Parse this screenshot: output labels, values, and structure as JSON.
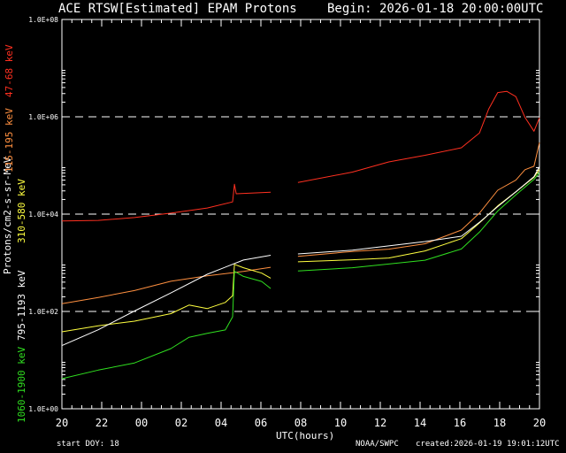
{
  "header": {
    "title": "ACE RTSW[Estimated] EPAM Protons",
    "begin": "Begin: 2026-01-18 20:00:00UTC"
  },
  "footer": {
    "start_doy_label": "start DOY:",
    "start_doy_value": "18",
    "source": "NOAA/SWPC",
    "created": "created:2026-01-19 19:01:12UTC"
  },
  "chart_data": {
    "type": "line",
    "scale": "log",
    "title": "ACE RTSW[Estimated] EPAM Protons",
    "xlabel": "UTC(hours)",
    "ylabel": "Protons/cm2-s-sr-MeV",
    "x_range_hours": [
      0,
      24
    ],
    "x_ticks": [
      "20",
      "22",
      "00",
      "02",
      "04",
      "06",
      "08",
      "10",
      "12",
      "14",
      "16",
      "18",
      "20"
    ],
    "y_ticks": [
      "1.0E+00",
      "1.0E+02",
      "1.0E+04",
      "1.0E+06",
      "1.0E+08"
    ],
    "y_log_range": [
      0,
      8
    ],
    "dashed_gridlines": [
      100,
      10000,
      1000000
    ],
    "legend_placement": "left-vertical",
    "series": [
      {
        "name": "47-68 keV",
        "color": "#ff3020",
        "points": [
          [
            0,
            7200
          ],
          [
            2,
            7800
          ],
          [
            4,
            8600
          ],
          [
            6,
            10000
          ],
          [
            8,
            13000
          ],
          [
            9.4,
            18000
          ],
          [
            9.5,
            40000
          ],
          [
            9.6,
            25000
          ],
          [
            11.5,
            27000
          ],
          [
            11.5,
            null
          ],
          [
            12.9,
            null
          ],
          [
            13,
            45000
          ],
          [
            16,
            70000
          ],
          [
            18,
            120000
          ],
          [
            20,
            170000
          ],
          [
            22,
            230000
          ],
          [
            23,
            450000
          ],
          [
            23.5,
            1500000
          ],
          [
            24,
            3000000
          ],
          [
            24.5,
            3500000
          ],
          [
            25,
            2500000
          ],
          [
            25.5,
            1000000
          ],
          [
            26,
            500000
          ],
          [
            26.3,
            1000000
          ]
        ]
      },
      {
        "name": "115-195 keV",
        "color": "#ff9040",
        "points": [
          [
            0,
            150
          ],
          [
            2,
            200
          ],
          [
            4,
            260
          ],
          [
            6,
            400
          ],
          [
            8,
            550
          ],
          [
            10,
            700
          ],
          [
            11.5,
            800
          ],
          [
            11.5,
            null
          ],
          [
            12.9,
            null
          ],
          [
            13,
            1300
          ],
          [
            16,
            1700
          ],
          [
            18,
            2000
          ],
          [
            20,
            2500
          ],
          [
            22,
            4500
          ],
          [
            23,
            10000
          ],
          [
            24,
            30000
          ],
          [
            25,
            50000
          ],
          [
            25.5,
            80000
          ],
          [
            26,
            100000
          ],
          [
            26.3,
            300000
          ]
        ]
      },
      {
        "name": "310-580 keV",
        "color": "#ffff40",
        "points": [
          [
            0,
            40
          ],
          [
            2,
            50
          ],
          [
            4,
            60
          ],
          [
            6,
            90
          ],
          [
            7,
            140
          ],
          [
            8,
            120
          ],
          [
            9,
            160
          ],
          [
            9.4,
            200
          ],
          [
            9.5,
            900
          ],
          [
            10,
            800
          ],
          [
            11,
            600
          ],
          [
            11.5,
            500
          ],
          [
            11.5,
            null
          ],
          [
            12.9,
            null
          ],
          [
            13,
            1000
          ],
          [
            16,
            1200
          ],
          [
            18,
            1300
          ],
          [
            20,
            1700
          ],
          [
            22,
            3000
          ],
          [
            23,
            6500
          ],
          [
            24,
            15000
          ],
          [
            25,
            30000
          ],
          [
            26,
            60000
          ],
          [
            26.3,
            80000
          ]
        ]
      },
      {
        "name": "795-1193 keV",
        "color": "#ffffff",
        "points": [
          [
            0,
            20
          ],
          [
            2,
            40
          ],
          [
            4,
            100
          ],
          [
            6,
            250
          ],
          [
            8,
            600
          ],
          [
            10,
            1100
          ],
          [
            11.5,
            1500
          ],
          [
            11.5,
            null
          ],
          [
            12.9,
            null
          ],
          [
            13,
            1500
          ],
          [
            16,
            1900
          ],
          [
            18,
            2200
          ],
          [
            20,
            2600
          ],
          [
            22,
            3500
          ],
          [
            23,
            7000
          ],
          [
            24,
            15000
          ],
          [
            25,
            30000
          ],
          [
            26,
            60000
          ],
          [
            26.3,
            90000
          ]
        ]
      },
      {
        "name": "1060-1900 keV",
        "color": "#30e020",
        "points": [
          [
            0,
            4
          ],
          [
            2,
            6
          ],
          [
            4,
            9
          ],
          [
            6,
            18
          ],
          [
            7,
            30
          ],
          [
            8,
            35
          ],
          [
            9,
            40
          ],
          [
            9.4,
            80
          ],
          [
            9.5,
            700
          ],
          [
            10,
            500
          ],
          [
            11,
            400
          ],
          [
            11.5,
            300
          ],
          [
            11.5,
            null
          ],
          [
            12.9,
            null
          ],
          [
            13,
            700
          ],
          [
            16,
            800
          ],
          [
            18,
            900
          ],
          [
            20,
            1100
          ],
          [
            22,
            2000
          ],
          [
            23,
            4500
          ],
          [
            24,
            12000
          ],
          [
            25,
            25000
          ],
          [
            26,
            50000
          ],
          [
            26.3,
            70000
          ]
        ]
      }
    ]
  }
}
